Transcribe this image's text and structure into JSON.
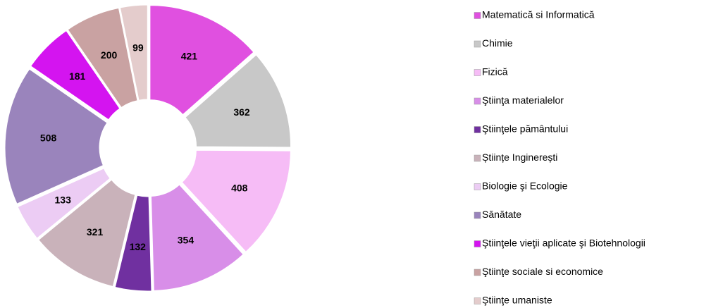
{
  "chart_data": {
    "type": "donut",
    "categories": [
      "Matematică si Informatică",
      "Chimie",
      "Fizică",
      "Ştiinţa materialelor",
      "Ştiinţele pământului",
      "Științe Inginerești",
      "Biologie şi Ecologie",
      "Sănătate",
      "Ştiinţele vieţii aplicate şi Biotehnologii",
      "Ştiinţe sociale si economice",
      "Ştiinţe umaniste"
    ],
    "values": [
      421,
      362,
      408,
      354,
      132,
      321,
      133,
      508,
      181,
      200,
      99
    ],
    "colors": [
      "#e050e0",
      "#c8c8c8",
      "#f6bcf6",
      "#d88ee8",
      "#7030a0",
      "#c9b2ba",
      "#ecccf4",
      "#9a84bc",
      "#d414f0",
      "#c9a2a2",
      "#e4cccc"
    ],
    "legend": "right"
  }
}
